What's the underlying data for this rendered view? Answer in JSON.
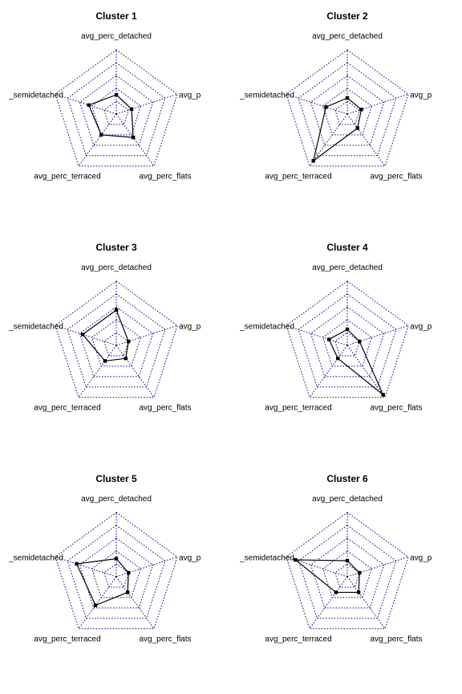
{
  "chart_data": [
    {
      "type": "radar",
      "title": "Cluster 1",
      "axes": [
        "avg_perc_detached",
        "avg_perc_caravan",
        "avg_perc_flats",
        "avg_perc_terraced",
        "avg_perc_semidetached"
      ],
      "axis_labels": [
        "avg_perc_detached",
        "avg_perc_cara",
        "avg_perc_flats",
        "avg_perc_terraced",
        "_semidetached"
      ],
      "range": [
        0,
        1
      ],
      "grid_levels": 5,
      "series": [
        {
          "values": [
            0.3,
            0.25,
            0.45,
            0.4,
            0.45
          ]
        }
      ]
    },
    {
      "type": "radar",
      "title": "Cluster 2",
      "axes": [
        "avg_perc_detached",
        "avg_perc_caravan",
        "avg_perc_flats",
        "avg_perc_terraced",
        "avg_perc_semidetached"
      ],
      "axis_labels": [
        "avg_perc_detached",
        "avg_perc_cara",
        "avg_perc_flats",
        "avg_perc_terraced",
        "_semidetached"
      ],
      "range": [
        0,
        1
      ],
      "grid_levels": 5,
      "series": [
        {
          "values": [
            0.25,
            0.23,
            0.27,
            0.9,
            0.35
          ]
        }
      ]
    },
    {
      "type": "radar",
      "title": "Cluster 3",
      "axes": [
        "avg_perc_detached",
        "avg_perc_caravan",
        "avg_perc_flats",
        "avg_perc_terraced",
        "avg_perc_semidetached"
      ],
      "axis_labels": [
        "avg_perc_detached",
        "avg_perc_cara",
        "avg_perc_flats",
        "avg_perc_terraced",
        "_semidetached"
      ],
      "range": [
        0,
        1
      ],
      "grid_levels": 5,
      "series": [
        {
          "values": [
            0.55,
            0.2,
            0.25,
            0.3,
            0.55
          ]
        }
      ]
    },
    {
      "type": "radar",
      "title": "Cluster 4",
      "axes": [
        "avg_perc_detached",
        "avg_perc_caravan",
        "avg_perc_flats",
        "avg_perc_terraced",
        "avg_perc_semidetached"
      ],
      "axis_labels": [
        "avg_perc_detached",
        "avg_perc_cara",
        "avg_perc_flats",
        "avg_perc_terraced",
        "_semidetached"
      ],
      "range": [
        0,
        1
      ],
      "grid_levels": 5,
      "series": [
        {
          "values": [
            0.25,
            0.2,
            0.95,
            0.25,
            0.3
          ]
        }
      ]
    },
    {
      "type": "radar",
      "title": "Cluster 5",
      "axes": [
        "avg_perc_detached",
        "avg_perc_caravan",
        "avg_perc_flats",
        "avg_perc_terraced",
        "avg_perc_semidetached"
      ],
      "axis_labels": [
        "avg_perc_detached",
        "avg_perc_cara",
        "avg_perc_flats",
        "avg_perc_terraced",
        "_semidetached"
      ],
      "range": [
        0,
        1
      ],
      "grid_levels": 5,
      "series": [
        {
          "values": [
            0.28,
            0.2,
            0.3,
            0.55,
            0.65
          ]
        }
      ]
    },
    {
      "type": "radar",
      "title": "Cluster 6",
      "axes": [
        "avg_perc_detached",
        "avg_perc_caravan",
        "avg_perc_flats",
        "avg_perc_terraced",
        "avg_perc_semidetached"
      ],
      "axis_labels": [
        "avg_perc_detached",
        "avg_perc_cara",
        "avg_perc_flats",
        "avg_perc_terraced",
        "_semidetached"
      ],
      "range": [
        0,
        1
      ],
      "grid_levels": 5,
      "series": [
        {
          "values": [
            0.25,
            0.2,
            0.3,
            0.3,
            0.85
          ]
        }
      ]
    }
  ]
}
